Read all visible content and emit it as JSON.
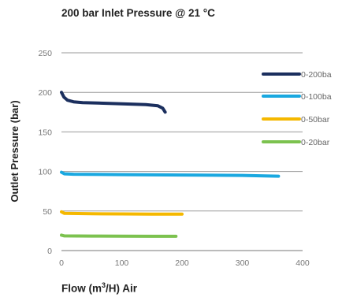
{
  "chart_data": {
    "type": "line",
    "title": "200 bar Inlet Pressure @ 21 °C",
    "xlabel_main": "Flow (m",
    "xlabel_sup": "3",
    "xlabel_tail": "/H) Air",
    "ylabel": "Outlet Pressure (bar)",
    "xlim": [
      0,
      400
    ],
    "ylim": [
      0,
      250
    ],
    "xticks": [
      0,
      100,
      200,
      300,
      400
    ],
    "yticks": [
      0,
      50,
      100,
      150,
      200,
      250
    ],
    "grid": "horizontal",
    "legend_position": "right",
    "series": [
      {
        "name": "0-200ba",
        "color": "#1b2f5e",
        "x": [
          0,
          4,
          10,
          20,
          35,
          60,
          100,
          140,
          160,
          168,
          172
        ],
        "y": [
          200,
          194,
          190,
          188,
          187,
          186.5,
          185.5,
          184.5,
          183,
          180,
          175
        ]
      },
      {
        "name": "0-100ba",
        "color": "#1aa8e0",
        "x": [
          0,
          5,
          20,
          100,
          200,
          300,
          360
        ],
        "y": [
          99,
          97,
          96.5,
          96,
          95.5,
          95,
          94
        ]
      },
      {
        "name": "0-50bar",
        "color": "#f5b800",
        "x": [
          0,
          5,
          50,
          100,
          150,
          200
        ],
        "y": [
          49,
          47,
          46.5,
          46.3,
          46,
          46
        ]
      },
      {
        "name": "0-20bar",
        "color": "#7cc24f",
        "x": [
          0,
          5,
          50,
          100,
          150,
          190
        ],
        "y": [
          19.5,
          18.5,
          18.3,
          18.2,
          18,
          18
        ]
      }
    ]
  }
}
